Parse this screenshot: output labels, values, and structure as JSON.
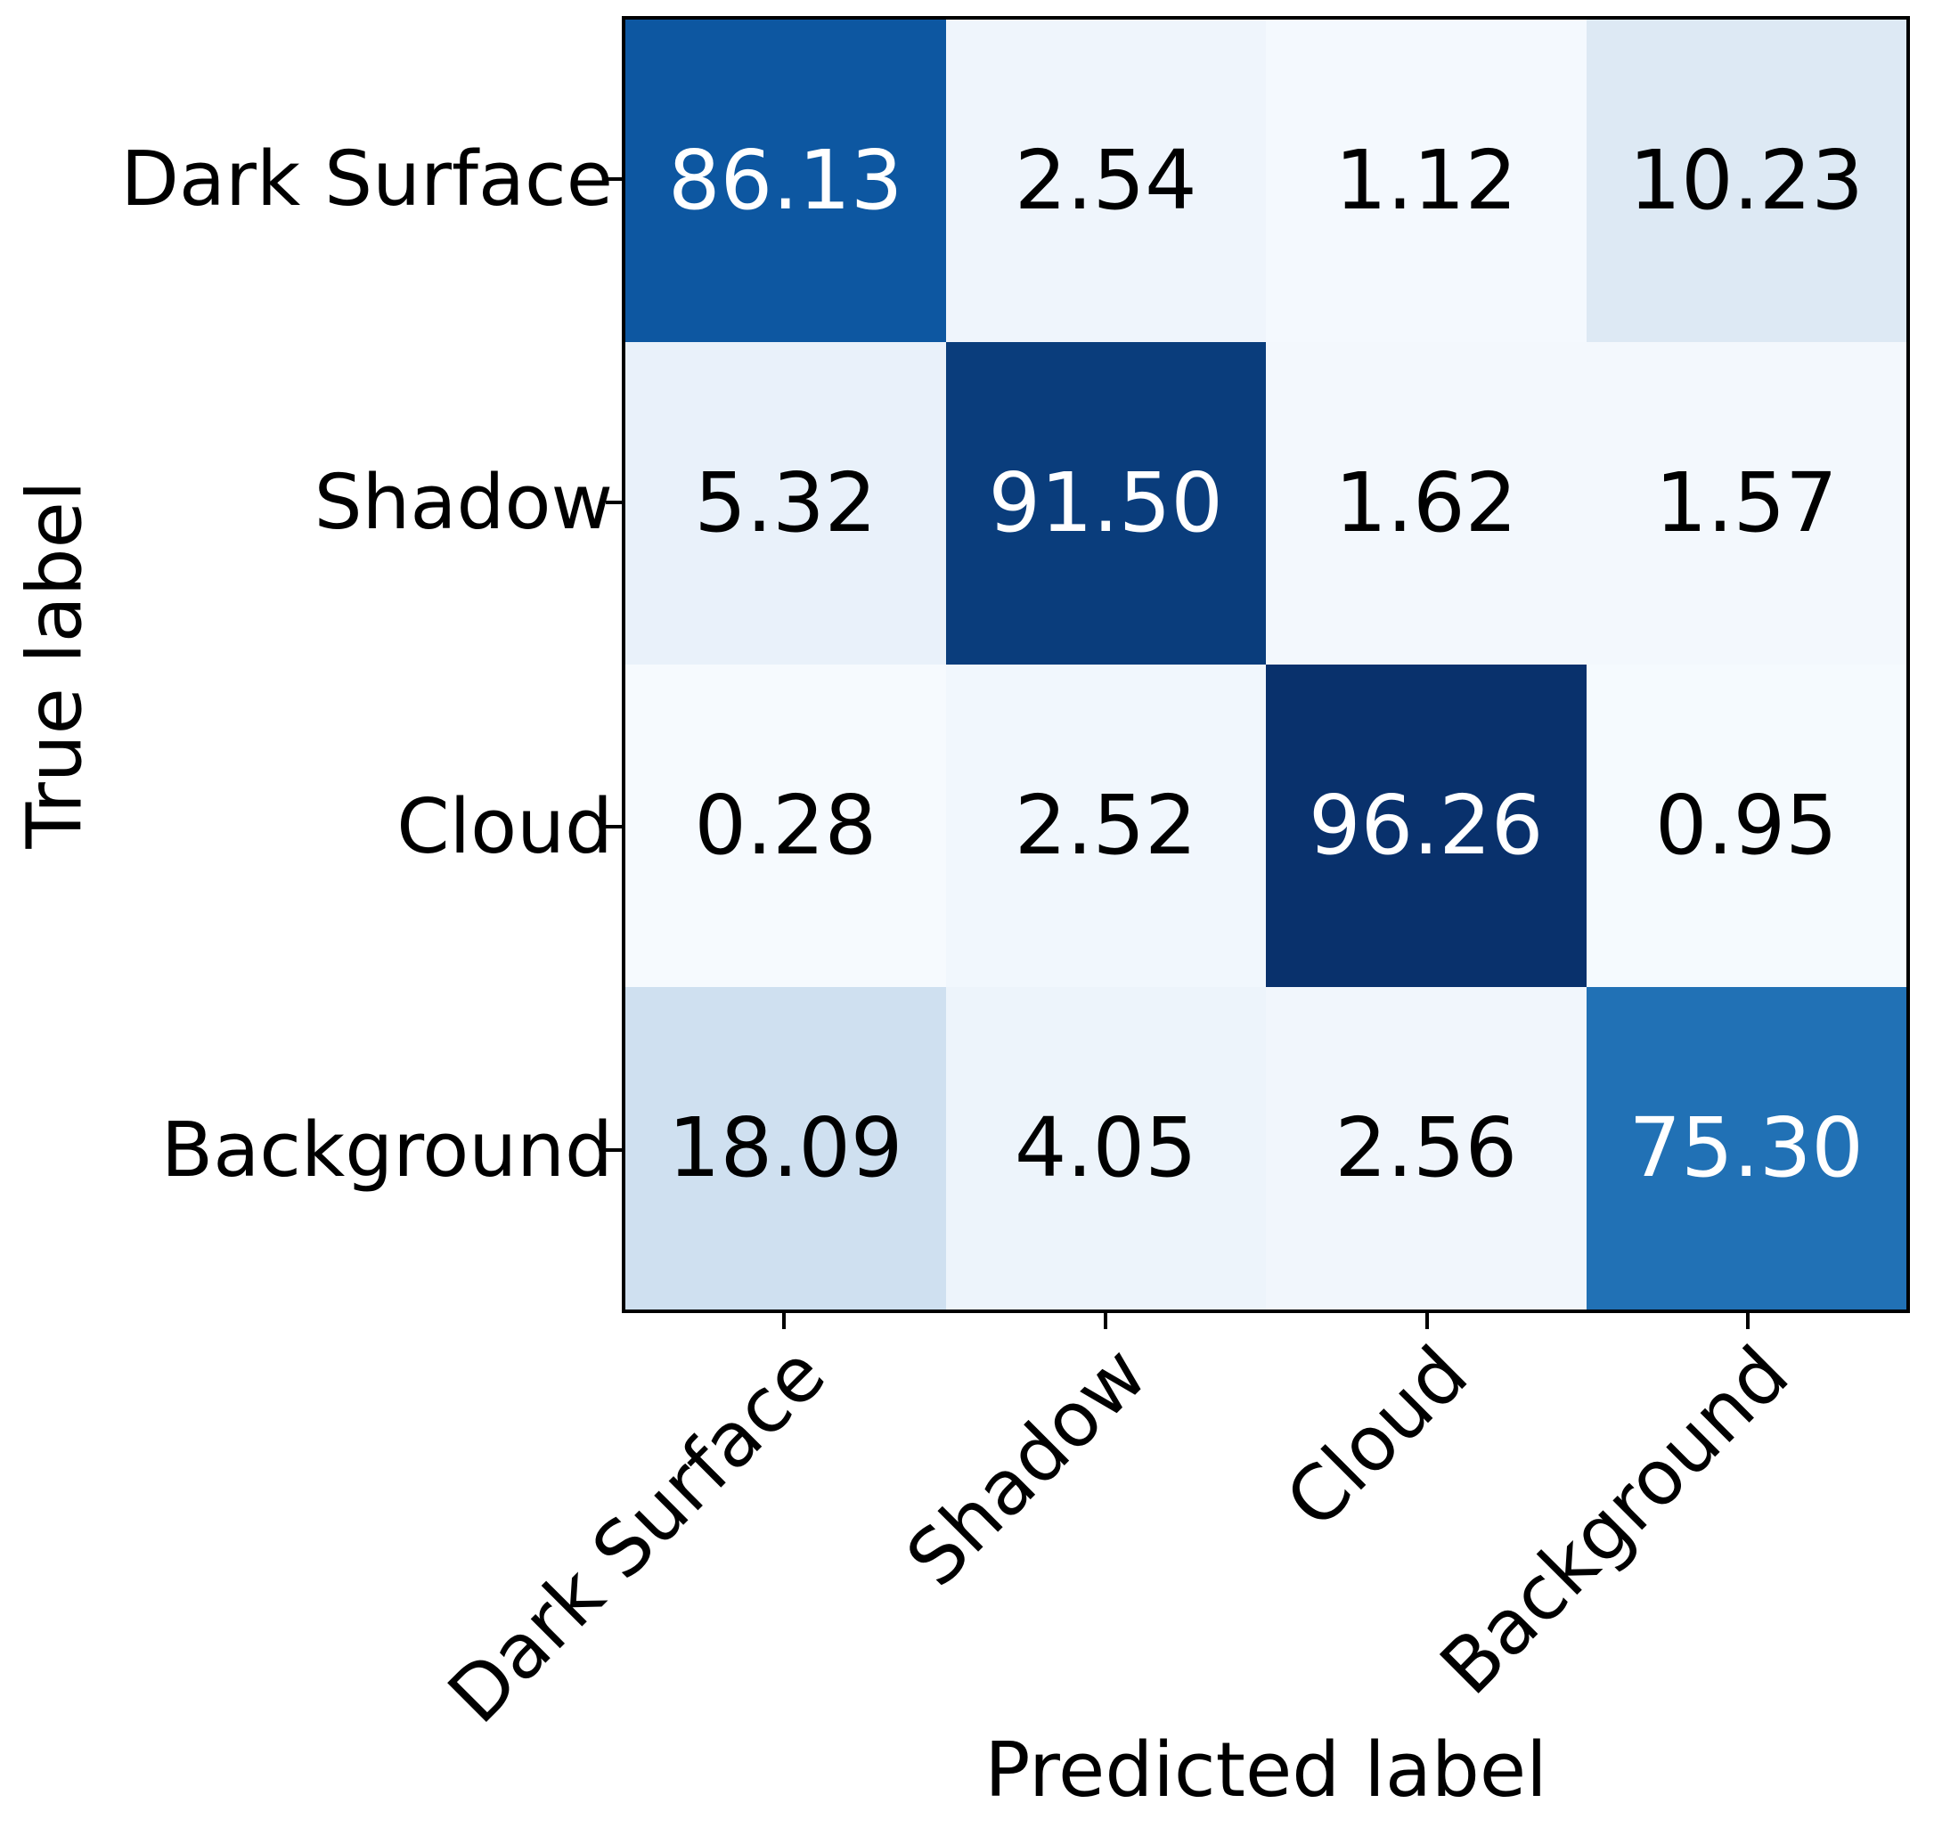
{
  "figure": {
    "kind": "confusion-matrix",
    "background": "#ffffff",
    "frame_color": "#000000",
    "colormap": "Blues"
  },
  "chart_data": {
    "type": "heatmap",
    "title": "",
    "xlabel": "Predicted label",
    "ylabel": "True label",
    "x_categories": [
      "Dark Surface",
      "Shadow",
      "Cloud",
      "Background"
    ],
    "y_categories": [
      "Dark Surface",
      "Shadow",
      "Cloud",
      "Background"
    ],
    "series": [
      {
        "name": "Dark Surface",
        "values": [
          86.13,
          2.54,
          1.12,
          10.23
        ]
      },
      {
        "name": "Shadow",
        "values": [
          5.32,
          91.5,
          1.62,
          1.57
        ]
      },
      {
        "name": "Cloud",
        "values": [
          0.28,
          2.52,
          96.26,
          0.95
        ]
      },
      {
        "name": "Background",
        "values": [
          18.09,
          4.05,
          2.56,
          75.3
        ]
      }
    ],
    "value_range": [
      0,
      100
    ],
    "legend": "none",
    "grid": false,
    "cells": [
      {
        "value": "86.13",
        "bg": "#0d57a1",
        "fg": "#ffffff"
      },
      {
        "value": "2.54",
        "bg": "#eff5fc",
        "fg": "#000000"
      },
      {
        "value": "1.12",
        "bg": "#f4f9fe",
        "fg": "#000000"
      },
      {
        "value": "10.23",
        "bg": "#dde9f4",
        "fg": "#000000"
      },
      {
        "value": "5.32",
        "bg": "#e9f1fa",
        "fg": "#000000"
      },
      {
        "value": "91.50",
        "bg": "#0a3d7c",
        "fg": "#ffffff"
      },
      {
        "value": "1.62",
        "bg": "#f3f8fd",
        "fg": "#000000"
      },
      {
        "value": "1.57",
        "bg": "#f3f8fd",
        "fg": "#000000"
      },
      {
        "value": "0.28",
        "bg": "#f6fafe",
        "fg": "#000000"
      },
      {
        "value": "2.52",
        "bg": "#f1f7fd",
        "fg": "#000000"
      },
      {
        "value": "96.26",
        "bg": "#09316c",
        "fg": "#ffffff"
      },
      {
        "value": "0.95",
        "bg": "#f5fafe",
        "fg": "#000000"
      },
      {
        "value": "18.09",
        "bg": "#cfe0f0",
        "fg": "#000000"
      },
      {
        "value": "4.05",
        "bg": "#edf4fb",
        "fg": "#000000"
      },
      {
        "value": "2.56",
        "bg": "#f1f6fc",
        "fg": "#000000"
      },
      {
        "value": "75.30",
        "bg": "#2171b5",
        "fg": "#ffffff"
      }
    ]
  }
}
